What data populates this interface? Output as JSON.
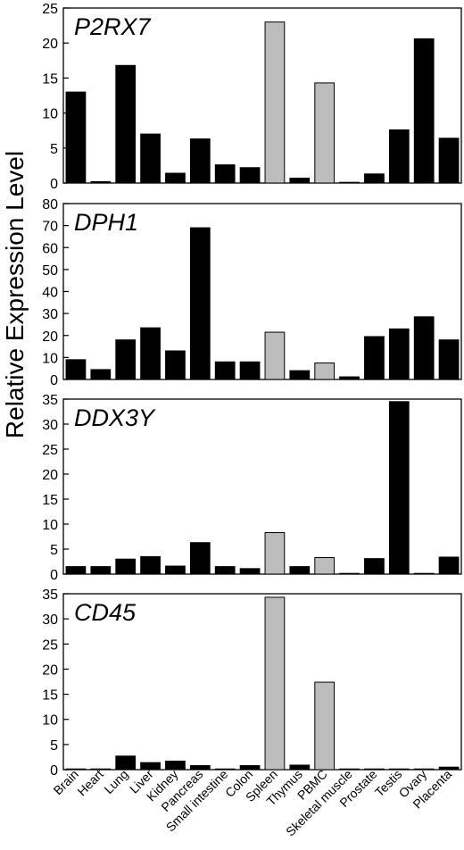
{
  "chart_data": {
    "type": "bar",
    "ylabel": "Relative Expression Level",
    "categories": [
      "Brain",
      "Heart",
      "Lung",
      "Liver",
      "Kidney",
      "Pancreas",
      "Small intestine",
      "Colon",
      "Spleen",
      "Thymus",
      "PBMC",
      "Skeletal muscle",
      "Prostate",
      "Testis",
      "Ovary",
      "Placenta"
    ],
    "colors": {
      "default": "#000000",
      "highlight": "#bdbdbd",
      "highlight_categories": [
        "Spleen",
        "PBMC"
      ]
    },
    "panels": [
      {
        "title": "P2RX7",
        "ylim": [
          0,
          25
        ],
        "yticks": [
          0,
          5,
          10,
          15,
          20,
          25
        ],
        "values": [
          13,
          0.2,
          16.8,
          7,
          1.4,
          6.3,
          2.6,
          2.2,
          23,
          0.7,
          14.3,
          0.1,
          1.3,
          7.6,
          20.6,
          6.4
        ]
      },
      {
        "title": "DPH1",
        "ylim": [
          0,
          80
        ],
        "yticks": [
          0,
          10,
          20,
          30,
          40,
          50,
          60,
          70,
          80
        ],
        "values": [
          9,
          4.5,
          18,
          23.5,
          13,
          69,
          8,
          8,
          21.5,
          4,
          7.5,
          1.2,
          19.5,
          23,
          28.5,
          18
        ]
      },
      {
        "title": "DDX3Y",
        "ylim": [
          0,
          35
        ],
        "yticks": [
          0,
          5,
          10,
          15,
          20,
          25,
          30,
          35
        ],
        "values": [
          1.5,
          1.5,
          3,
          3.5,
          1.6,
          6.3,
          1.5,
          1.1,
          8.3,
          1.5,
          3.3,
          0,
          3.1,
          34.5,
          0,
          3.4
        ]
      },
      {
        "title": "CD45",
        "ylim": [
          0,
          35
        ],
        "yticks": [
          0,
          5,
          10,
          15,
          20,
          25,
          30,
          35
        ],
        "values": [
          0,
          0,
          2.7,
          1.4,
          1.7,
          0.8,
          0,
          0.8,
          34.3,
          0.9,
          17.4,
          0.1,
          0.1,
          0.1,
          0.1,
          0.5
        ]
      }
    ]
  }
}
